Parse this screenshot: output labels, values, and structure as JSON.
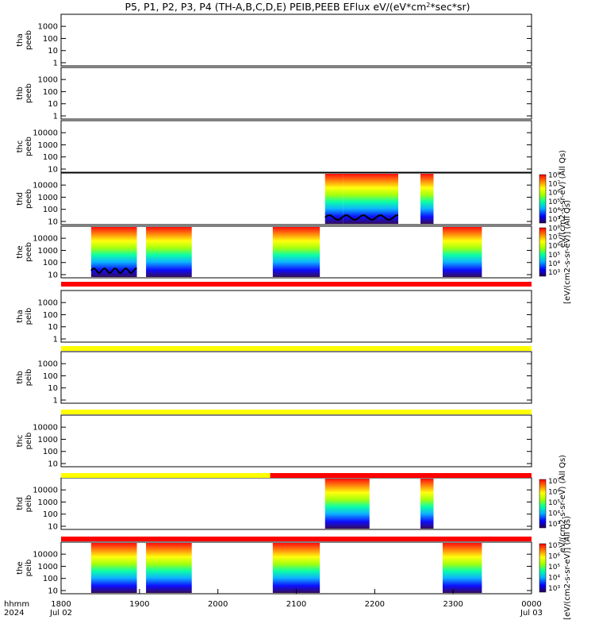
{
  "chart_data": {
    "type": "heatmap",
    "title": "P5, P1, P2, P3, P4 (TH-A,B,C,D,E) PEIB,PEEB EFlux eV/(eV*cm",
    "title_sup": "2",
    "title_end": "*sec*sr)",
    "x_axis": {
      "range": [
        "18:00",
        "24:00"
      ],
      "ticks": [
        "1800",
        "1900",
        "2000",
        "2100",
        "2200",
        "2300",
        "0000"
      ],
      "row1_label": "hhmm",
      "row2_label": "2024",
      "date_start": "Jul 02",
      "date_end": "Jul 03"
    },
    "panels": [
      {
        "probe": "tha",
        "species": "peeb",
        "yticks": [
          "1",
          "10",
          "100",
          "1000"
        ],
        "log_scale": true,
        "bursts": []
      },
      {
        "probe": "thb",
        "species": "peeb",
        "yticks": [
          "1",
          "10",
          "100",
          "1000"
        ],
        "log_scale": true,
        "bursts": []
      },
      {
        "probe": "thc",
        "species": "peeb",
        "yticks": [
          "10",
          "100",
          "1000",
          "10000"
        ],
        "log_scale": true,
        "bursts": []
      },
      {
        "probe": "thd",
        "species": "peeb",
        "yticks": [
          "10",
          "100",
          "1000",
          "10000"
        ],
        "log_scale": true,
        "bursts": [
          [
            2122,
            2136
          ],
          [
            2136,
            2218
          ],
          [
            2235,
            2245
          ]
        ],
        "trace_window": [
          2122,
          2218
        ]
      },
      {
        "probe": "the",
        "species": "peeb",
        "yticks": [
          "10",
          "100",
          "1000",
          "10000"
        ],
        "log_scale": true,
        "bursts": [
          [
            1823,
            1858
          ],
          [
            1905,
            1940
          ],
          [
            2042,
            2118
          ],
          [
            2252,
            2322
          ]
        ],
        "trace_window": [
          1823,
          1858
        ]
      },
      {
        "probe": "tha",
        "species": "peib",
        "yticks": [
          "1",
          "10",
          "100",
          "1000"
        ],
        "log_scale": true,
        "bursts": []
      },
      {
        "probe": "thb",
        "species": "peib",
        "yticks": [
          "1",
          "10",
          "100",
          "1000"
        ],
        "log_scale": true,
        "bursts": []
      },
      {
        "probe": "thc",
        "species": "peib",
        "yticks": [
          "10",
          "100",
          "1000",
          "10000"
        ],
        "log_scale": true,
        "bursts": []
      },
      {
        "probe": "thd",
        "species": "peib",
        "yticks": [
          "10",
          "100",
          "1000",
          "10000"
        ],
        "log_scale": true,
        "bursts": [
          [
            2122,
            2156
          ],
          [
            2235,
            2245
          ]
        ]
      },
      {
        "probe": "the",
        "species": "peib",
        "yticks": [
          "10",
          "100",
          "1000",
          "10000"
        ],
        "log_scale": true,
        "bursts": [
          [
            1823,
            1858
          ],
          [
            1905,
            1940
          ],
          [
            2042,
            2118
          ],
          [
            2252,
            2322
          ]
        ]
      }
    ],
    "status_bars": [
      {
        "after_panel": 4,
        "segments": [
          {
            "x": [
              1800,
              2400
            ],
            "color": "#ff0000"
          }
        ]
      },
      {
        "after_panel": 5,
        "segments": [
          {
            "x": [
              1800,
              2400
            ],
            "color": "#ffff00"
          }
        ]
      },
      {
        "after_panel": 6,
        "segments": [
          {
            "x": [
              1800,
              2400
            ],
            "color": "#ffff00"
          }
        ]
      },
      {
        "after_panel": 7,
        "segments": [
          {
            "x": [
              1800,
              2040
            ],
            "color": "#ffff00"
          },
          {
            "x": [
              2040,
              2400
            ],
            "color": "#ff0000"
          }
        ]
      },
      {
        "after_panel": 8,
        "segments": [
          {
            "x": [
              1800,
              2400
            ],
            "color": "#ff0000"
          }
        ]
      }
    ],
    "colorbars": [
      {
        "panels": [
          3
        ],
        "labels": [
          "10³",
          "10⁴",
          "10⁵",
          "10⁶",
          "10⁷",
          "10⁸"
        ],
        "title": "eV/(cm2-s-sr-eV) (All Qs)"
      },
      {
        "panels": [
          4
        ],
        "labels": [
          "10³",
          "10⁴",
          "10⁵",
          "10⁶",
          "10⁷",
          "10⁸"
        ],
        "title": "[eV/(cm2-s-sr-eV)] (All Qs)"
      },
      {
        "panels": [
          8
        ],
        "labels": [
          "10³",
          "10⁴",
          "10⁵",
          "10⁶",
          "10⁷"
        ],
        "title": "eV/(cm2-s-sr-eV) (All Qs)"
      },
      {
        "panels": [
          9
        ],
        "labels": [
          "10³",
          "10⁴",
          "10⁵",
          "10⁶",
          "10⁷"
        ],
        "title": "[eV/(cm2-s-sr-eV)] (All Qs)"
      }
    ]
  }
}
